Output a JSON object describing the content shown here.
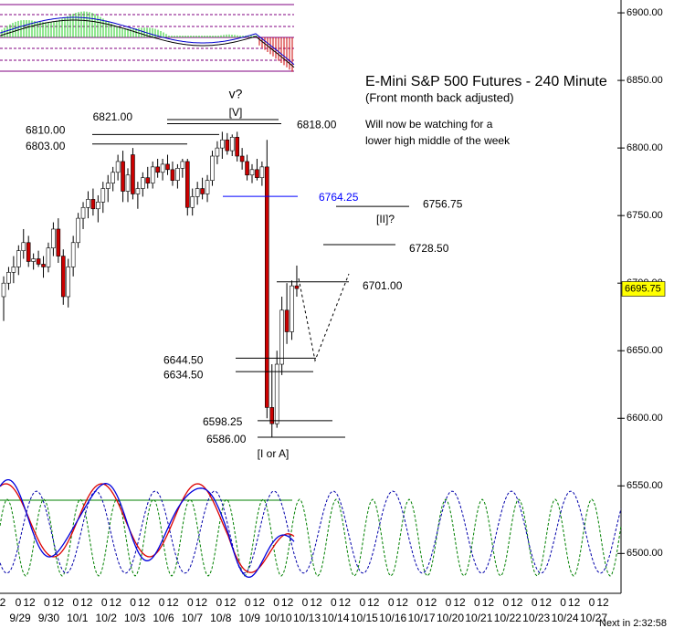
{
  "chart_data": {
    "type": "candlestick",
    "title": "E-Mini S&P 500 Futures - 240 Minute",
    "subtitle": "(Front month back adjusted)",
    "note": [
      "Will now be watching for a",
      "lower high middle of the week"
    ],
    "up_color": "#ffffff",
    "down_color": "#cc0000",
    "ylim": [
      6470.5,
      6909.5
    ],
    "yticks": [
      {
        "value": 6500,
        "label": "6500.00"
      },
      {
        "value": 6550,
        "label": "6550.00"
      },
      {
        "value": 6600,
        "label": "6600.00"
      },
      {
        "value": 6650,
        "label": "6650.00"
      },
      {
        "value": 6700,
        "label": "6700.00"
      },
      {
        "value": 6750,
        "label": "6750.00"
      },
      {
        "value": 6800,
        "label": "6800.00"
      },
      {
        "value": 6850,
        "label": "6850.00"
      },
      {
        "value": 6900,
        "label": "6900.00"
      }
    ],
    "x_hour_labels": [
      "2",
      "0",
      "12",
      "0",
      "12",
      "0",
      "12",
      "0",
      "12",
      "0",
      "12",
      "0",
      "12",
      "0",
      "12",
      "0",
      "12",
      "0",
      "12",
      "0",
      "12",
      "0",
      "12",
      "0",
      "12",
      "0",
      "12",
      "0",
      "12",
      "0",
      "12",
      "0",
      "12",
      "0",
      "12",
      "0",
      "12",
      "0",
      "12",
      "0",
      "12",
      "0",
      "12"
    ],
    "x_date_labels": [
      "9/29",
      "9/30",
      "10/1",
      "10/2",
      "10/3",
      "10/6",
      "10/7",
      "10/8",
      "10/9",
      "10/10",
      "10/13",
      "10/14",
      "10/15",
      "10/16",
      "10/17",
      "10/20",
      "10/21",
      "10/22",
      "10/23",
      "10/24",
      "10/27"
    ],
    "open": [
      6690,
      6700,
      6708,
      6712,
      6724,
      6730,
      6716,
      6718,
      6714,
      6712,
      6726,
      6740,
      6720,
      6690,
      6712,
      6730,
      6748,
      6756,
      6762,
      6755,
      6760,
      6770,
      6774,
      6782,
      6790,
      6768,
      6795,
      6766,
      6770,
      6778,
      6774,
      6786,
      6782,
      6788,
      6784,
      6776,
      6785,
      6790,
      6756,
      6764,
      6770,
      6766,
      6776,
      6794,
      6800,
      6806,
      6798,
      6808,
      6794,
      6790,
      6780,
      6784,
      6778,
      6786,
      6608,
      6596,
      6640,
      6680,
      6664,
      6698
    ],
    "high": [
      6705,
      6712,
      6720,
      6728,
      6740,
      6735,
      6722,
      6724,
      6720,
      6730,
      6745,
      6748,
      6725,
      6718,
      6735,
      6752,
      6760,
      6768,
      6770,
      6765,
      6775,
      6780,
      6786,
      6795,
      6798,
      6785,
      6800,
      6775,
      6782,
      6786,
      6790,
      6792,
      6792,
      6795,
      6790,
      6788,
      6792,
      6792,
      6770,
      6775,
      6778,
      6780,
      6798,
      6805,
      6812,
      6811,
      6810,
      6812,
      6800,
      6795,
      6788,
      6792,
      6790,
      6806,
      6640,
      6650,
      6690,
      6700,
      6702,
      6713
    ],
    "low": [
      6672,
      6695,
      6700,
      6706,
      6718,
      6712,
      6710,
      6712,
      6704,
      6708,
      6720,
      6715,
      6684,
      6682,
      6705,
      6726,
      6740,
      6748,
      6750,
      6745,
      6752,
      6760,
      6768,
      6776,
      6760,
      6760,
      6762,
      6755,
      6764,
      6770,
      6770,
      6778,
      6776,
      6780,
      6772,
      6770,
      6778,
      6750,
      6750,
      6758,
      6762,
      6760,
      6772,
      6788,
      6792,
      6795,
      6794,
      6790,
      6784,
      6776,
      6774,
      6776,
      6772,
      6600,
      6586,
      6593,
      6632,
      6655,
      6658,
      6690
    ],
    "close": [
      6700,
      6708,
      6712,
      6724,
      6730,
      6716,
      6718,
      6714,
      6712,
      6726,
      6740,
      6720,
      6690,
      6712,
      6730,
      6748,
      6756,
      6762,
      6755,
      6760,
      6770,
      6774,
      6782,
      6790,
      6768,
      6780,
      6766,
      6770,
      6778,
      6774,
      6786,
      6782,
      6788,
      6784,
      6776,
      6785,
      6790,
      6756,
      6764,
      6770,
      6766,
      6776,
      6794,
      6800,
      6806,
      6798,
      6808,
      6794,
      6790,
      6780,
      6784,
      6778,
      6786,
      6608,
      6596,
      6640,
      6680,
      6664,
      6698,
      6696
    ],
    "levels": [
      {
        "value": 6821,
        "label": "6821.00",
        "color": "#000000"
      },
      {
        "value": 6818,
        "label": "6818.00",
        "color": "#000000"
      },
      {
        "value": 6810,
        "label": "6810.00",
        "color": "#000000"
      },
      {
        "value": 6803,
        "label": "6803.00",
        "color": "#000000"
      },
      {
        "value": 6764.25,
        "label": "6764.25",
        "color": "#0000ff"
      },
      {
        "value": 6756.75,
        "label": "6756.75",
        "color": "#000000"
      },
      {
        "value": 6728.5,
        "label": "6728.50",
        "color": "#000000"
      },
      {
        "value": 6701,
        "label": "6701.00",
        "color": "#000000"
      },
      {
        "value": 6644.5,
        "label": "6644.50",
        "color": "#000000"
      },
      {
        "value": 6634.5,
        "label": "6634.50",
        "color": "#000000"
      },
      {
        "value": 6598.25,
        "label": "6598.25",
        "color": "#000000"
      },
      {
        "value": 6586,
        "label": "6586.00",
        "color": "#000000"
      }
    ],
    "wave_labels": [
      "v?",
      "[V]",
      "[II]?",
      "[I or A]"
    ],
    "last_price": {
      "value": 6695.75,
      "label": "6695.75"
    },
    "countdown": "Next in 2:32:58"
  }
}
